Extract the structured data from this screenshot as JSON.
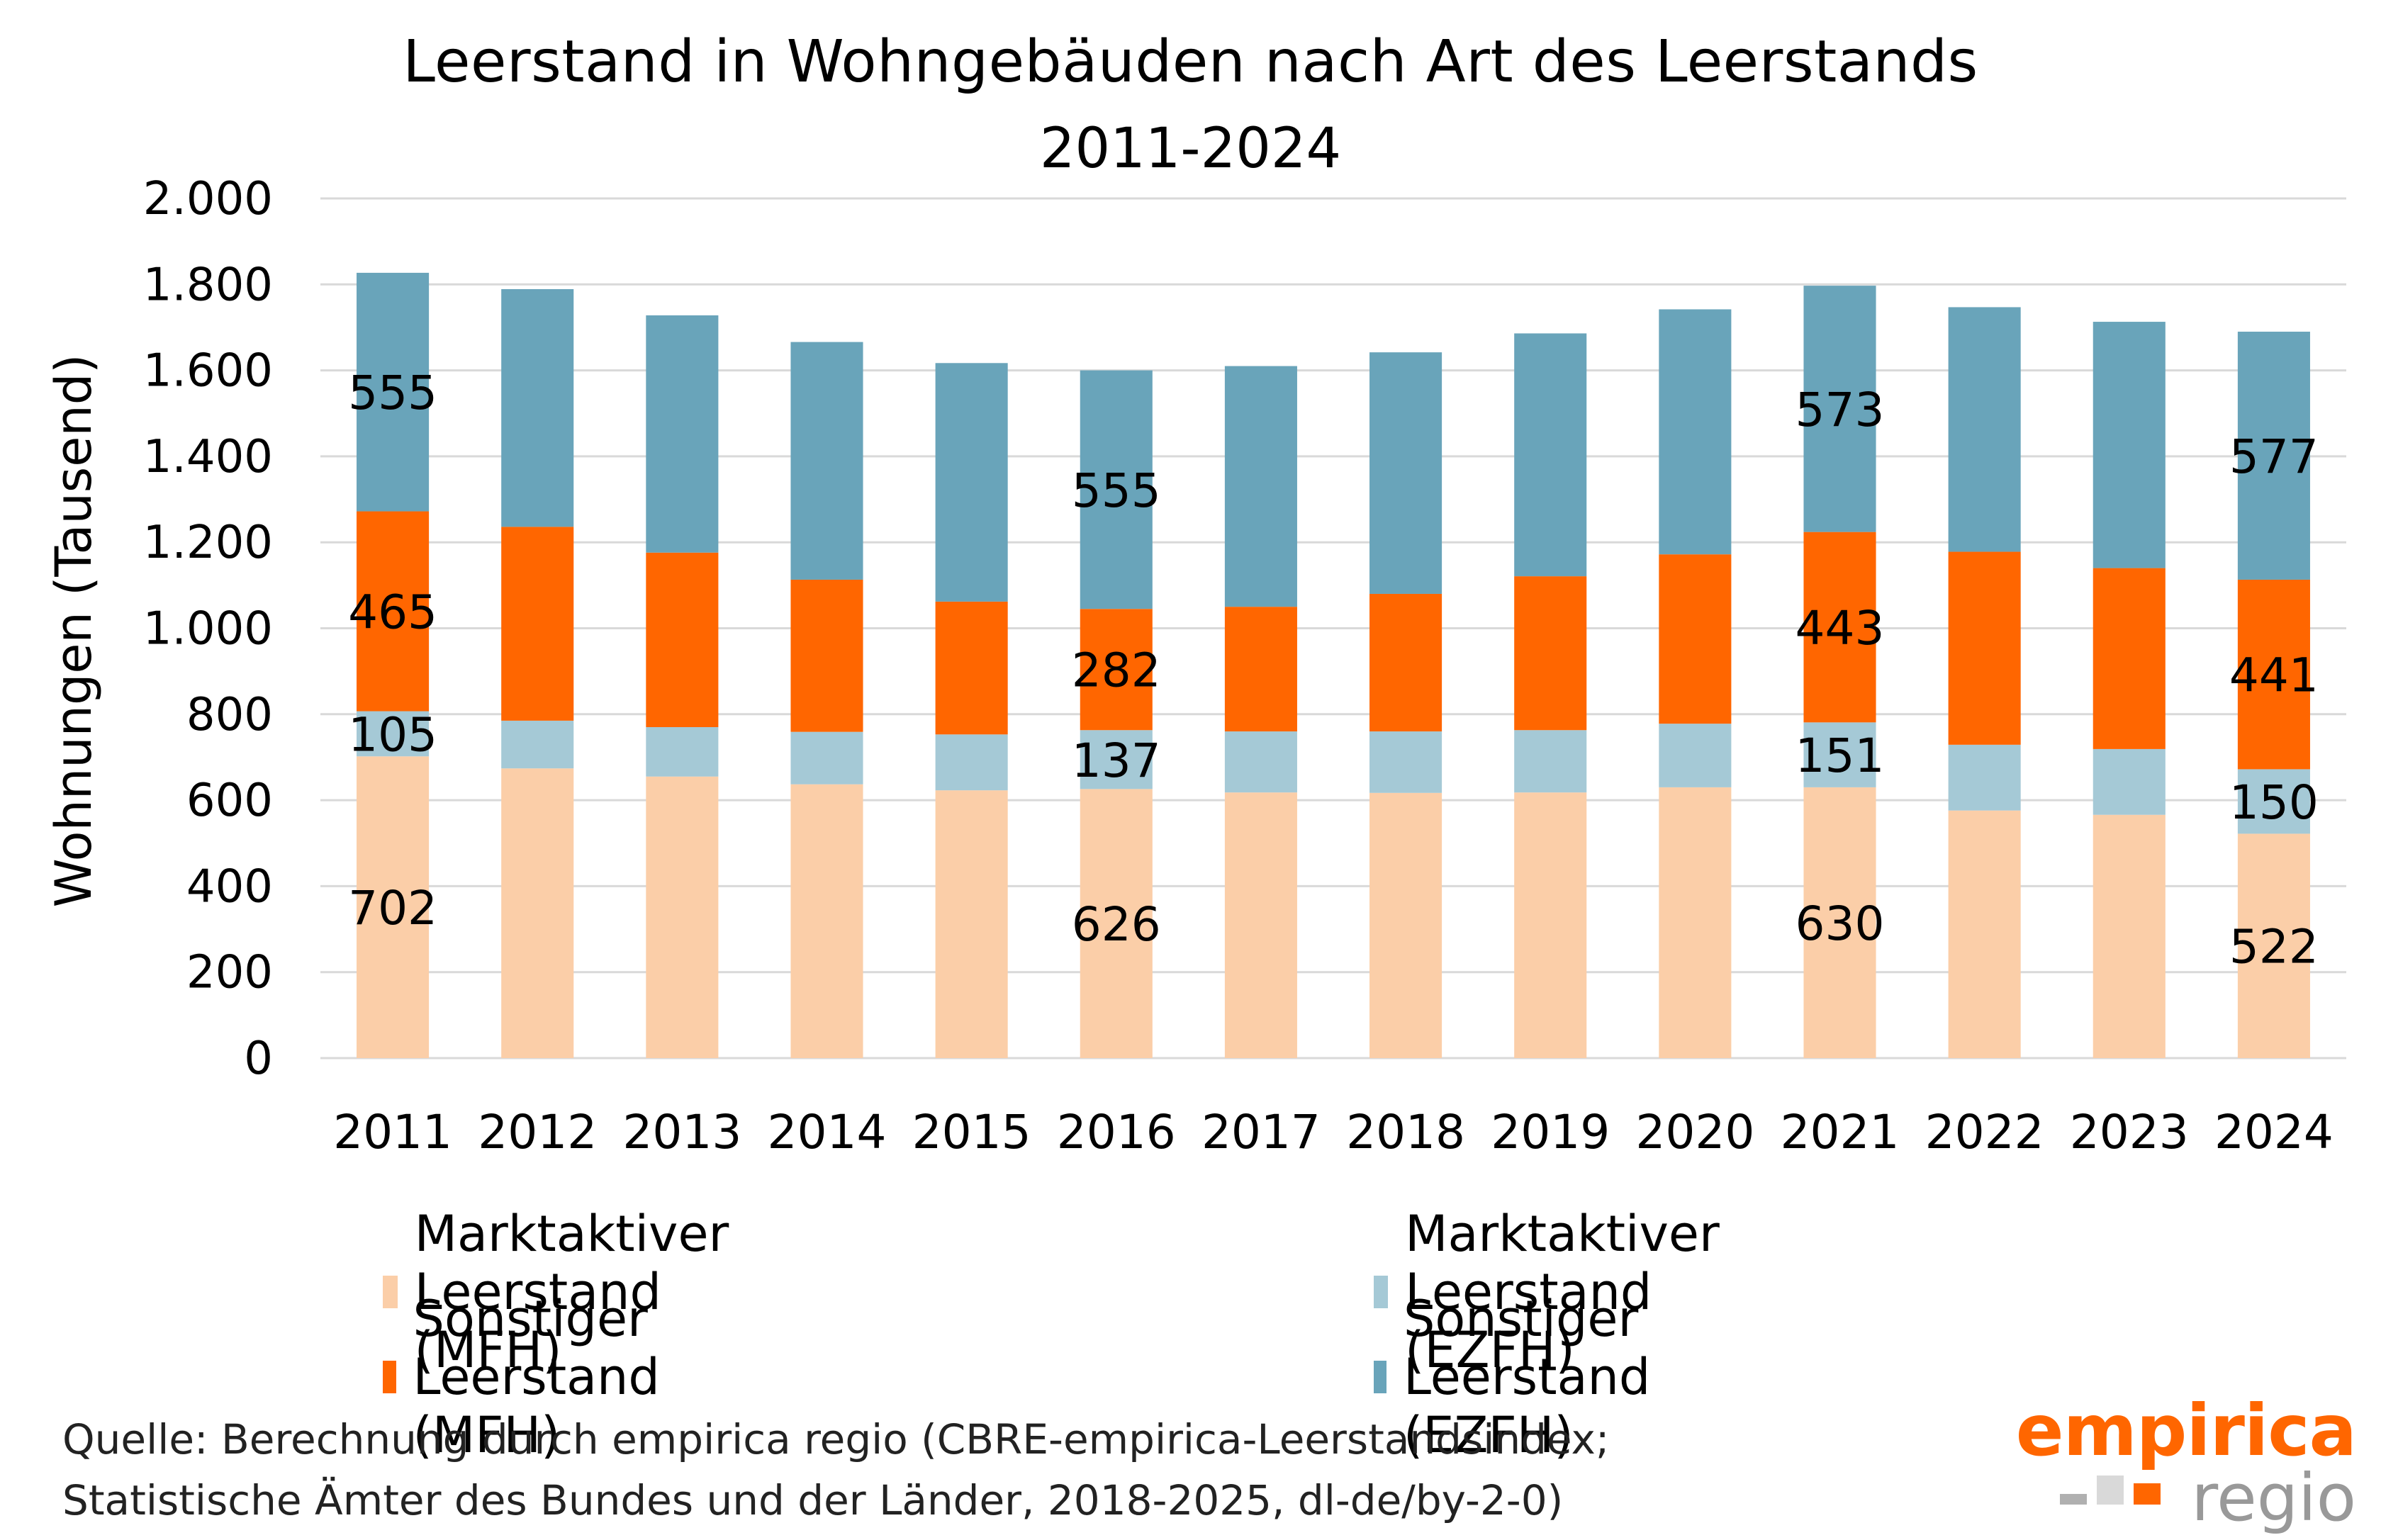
{
  "chart_data": {
    "type": "bar",
    "stacked": true,
    "title": "Leerstand in Wohngebäuden nach Art des Leerstands",
    "subtitle": "2011-2024",
    "xlabel": "",
    "ylabel": "Wohnungen (Tausend)",
    "ylim": [
      0,
      2000
    ],
    "yticks": [
      0,
      200,
      400,
      600,
      800,
      1000,
      1200,
      1400,
      1600,
      1800,
      2000
    ],
    "ytick_labels": [
      "0",
      "200",
      "400",
      "600",
      "800",
      "1.000",
      "1.200",
      "1.400",
      "1.600",
      "1.800",
      "2.000"
    ],
    "grid": true,
    "legend_position": "bottom",
    "categories": [
      "2011",
      "2012",
      "2013",
      "2014",
      "2015",
      "2016",
      "2017",
      "2018",
      "2019",
      "2020",
      "2021",
      "2022",
      "2023",
      "2024"
    ],
    "series": [
      {
        "name": "Marktaktiver Leerstand (MFH)",
        "color": "#fbcea8",
        "values": [
          702,
          674,
          655,
          637,
          623,
          626,
          618,
          617,
          618,
          630,
          630,
          576,
          566,
          522
        ]
      },
      {
        "name": "Marktaktiver Leerstand (EZFH)",
        "color": "#a5c9d6",
        "values": [
          105,
          111,
          115,
          122,
          130,
          137,
          142,
          143,
          145,
          148,
          151,
          153,
          153,
          150
        ]
      },
      {
        "name": "Sonstiger Leerstand (MFH)",
        "color": "#ff6600",
        "values": [
          465,
          451,
          406,
          354,
          309,
          282,
          290,
          320,
          358,
          394,
          443,
          449,
          421,
          441
        ]
      },
      {
        "name": "Sonstiger Leerstand (EZFH)",
        "color": "#69a4ba",
        "values": [
          555,
          553,
          552,
          553,
          555,
          555,
          560,
          562,
          565,
          570,
          573,
          569,
          573,
          577
        ]
      }
    ],
    "data_labels_shown_for": [
      "2011",
      "2016",
      "2021",
      "2024"
    ]
  },
  "legend": [
    {
      "label": "Marktaktiver Leerstand (MFH)",
      "color": "#fbcea8"
    },
    {
      "label": "Marktaktiver Leerstand (EZFH)",
      "color": "#a5c9d6"
    },
    {
      "label": "Sonstiger Leerstand (MFH)",
      "color": "#ff6600"
    },
    {
      "label": "Sonstiger Leerstand (EZFH)",
      "color": "#69a4ba"
    }
  ],
  "footer": {
    "line1": "Quelle: Berechnung durch empirica regio (CBRE-empirica-Leerstandsindex;",
    "line2": "Statistische Ämter des Bundes und der Länder, 2018-2025, dl-de/by-2-0)"
  },
  "logo": {
    "top": "empirica",
    "bottom": "regio",
    "colors": {
      "orange": "#ff6600",
      "gray": "#999999",
      "light_gray": "#d9d9d9",
      "mid_gray": "#b0b0b0"
    }
  }
}
